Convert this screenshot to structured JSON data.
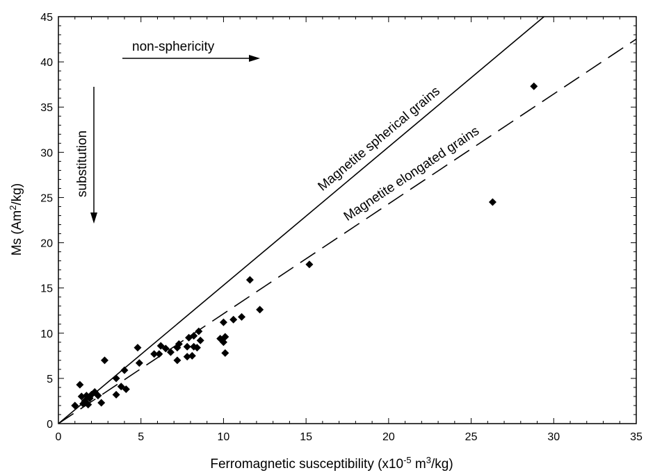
{
  "chart_data": {
    "type": "scatter",
    "xlabel": {
      "prefix": "Ferromagnetic susceptibility (x10",
      "exp1": "-5",
      "mid": " m",
      "exp2": "3",
      "suffix": "/kg)"
    },
    "ylabel": {
      "prefix": "Ms (Am",
      "exp": "2",
      "suffix": "/kg)"
    },
    "xlim": [
      0,
      35
    ],
    "ylim": [
      0,
      45
    ],
    "xticks": [
      "0",
      "5",
      "10",
      "15",
      "20",
      "25",
      "30",
      "35"
    ],
    "yticks": [
      "0",
      "5",
      "10",
      "15",
      "20",
      "25",
      "30",
      "35",
      "40",
      "45"
    ],
    "grid": false,
    "points": {
      "x": [
        1.0,
        1.3,
        1.4,
        1.5,
        1.6,
        1.7,
        1.8,
        1.9,
        2.0,
        2.2,
        2.4,
        2.6,
        2.8,
        3.5,
        3.5,
        3.8,
        4.0,
        4.1,
        4.8,
        4.9,
        5.8,
        6.1,
        6.2,
        6.5,
        6.8,
        7.2,
        7.2,
        7.3,
        7.8,
        7.8,
        7.9,
        8.1,
        8.2,
        8.2,
        8.4,
        8.5,
        8.6,
        9.8,
        10.0,
        10.0,
        10.1,
        10.1,
        10.6,
        11.1,
        11.6,
        12.2,
        15.2,
        26.3,
        28.8
      ],
      "y": [
        2.0,
        4.3,
        3.0,
        2.2,
        2.5,
        3.1,
        2.1,
        2.8,
        3.2,
        3.5,
        3.1,
        2.3,
        7.0,
        3.2,
        5.0,
        4.1,
        5.9,
        3.8,
        8.4,
        6.7,
        7.7,
        7.7,
        8.6,
        8.3,
        7.9,
        7.0,
        8.4,
        8.8,
        7.4,
        8.5,
        9.5,
        7.5,
        8.5,
        9.7,
        8.4,
        10.2,
        9.2,
        9.4,
        9.0,
        11.2,
        9.6,
        7.8,
        11.5,
        11.8,
        15.9,
        12.6,
        17.6,
        24.5,
        37.3
      ]
    },
    "lines": [
      {
        "label": "Magnetite spherical grains",
        "slope": 1.53,
        "style": "solid"
      },
      {
        "label": "Magnetite elongated grains",
        "slope": 1.215,
        "style": "dashed"
      }
    ],
    "annotations": [
      {
        "text": "non-sphericity",
        "direction": "right"
      },
      {
        "text": "substitution",
        "direction": "down"
      }
    ]
  }
}
